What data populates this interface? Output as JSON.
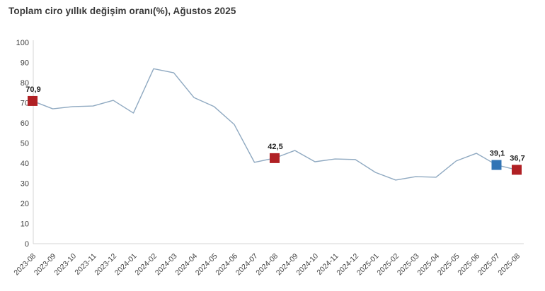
{
  "title": "Toplam ciro yıllık değişim oranı(%), Ağustos 2025",
  "colors": {
    "line": "#8FA9C1",
    "axis": "#D6D6D6",
    "red_marker": "#B02024",
    "blue_marker": "#3174B5",
    "tick_text": "#404040",
    "title_text": "#383838"
  },
  "chart_data": {
    "type": "line",
    "title": "Toplam ciro yıllık değişim oranı(%), Ağustos 2025",
    "xlabel": "",
    "ylabel": "",
    "ylim": [
      0,
      100
    ],
    "y_ticks": [
      0,
      10,
      20,
      30,
      40,
      50,
      60,
      70,
      80,
      90,
      100
    ],
    "grid": false,
    "legend": false,
    "categories": [
      "2023-08",
      "2023-09",
      "2023-10",
      "2023-11",
      "2023-12",
      "2024-01",
      "2024-02",
      "2024-03",
      "2024-04",
      "2024-05",
      "2024-06",
      "2024-07",
      "2024-08",
      "2024-09",
      "2024-10",
      "2024-11",
      "2024-12",
      "2025-01",
      "2025-02",
      "2025-03",
      "2025-04",
      "2025-05",
      "2025-06",
      "2025-07",
      "2025-08"
    ],
    "values": [
      70.9,
      67.0,
      68.1,
      68.4,
      71.2,
      64.9,
      86.9,
      84.9,
      72.6,
      68.1,
      59.2,
      40.4,
      42.5,
      46.3,
      40.7,
      42.1,
      41.8,
      35.4,
      31.6,
      33.3,
      33.0,
      41.1,
      44.9,
      39.1,
      36.7
    ],
    "labeled_points": [
      {
        "index": 0,
        "category": "2023-08",
        "label": "70,9",
        "marker_color": "#B02024"
      },
      {
        "index": 12,
        "category": "2024-08",
        "label": "42,5",
        "marker_color": "#B02024"
      },
      {
        "index": 23,
        "category": "2025-07",
        "label": "39,1",
        "marker_color": "#3174B5"
      },
      {
        "index": 24,
        "category": "2025-08",
        "label": "36,7",
        "marker_color": "#B02024"
      }
    ]
  }
}
